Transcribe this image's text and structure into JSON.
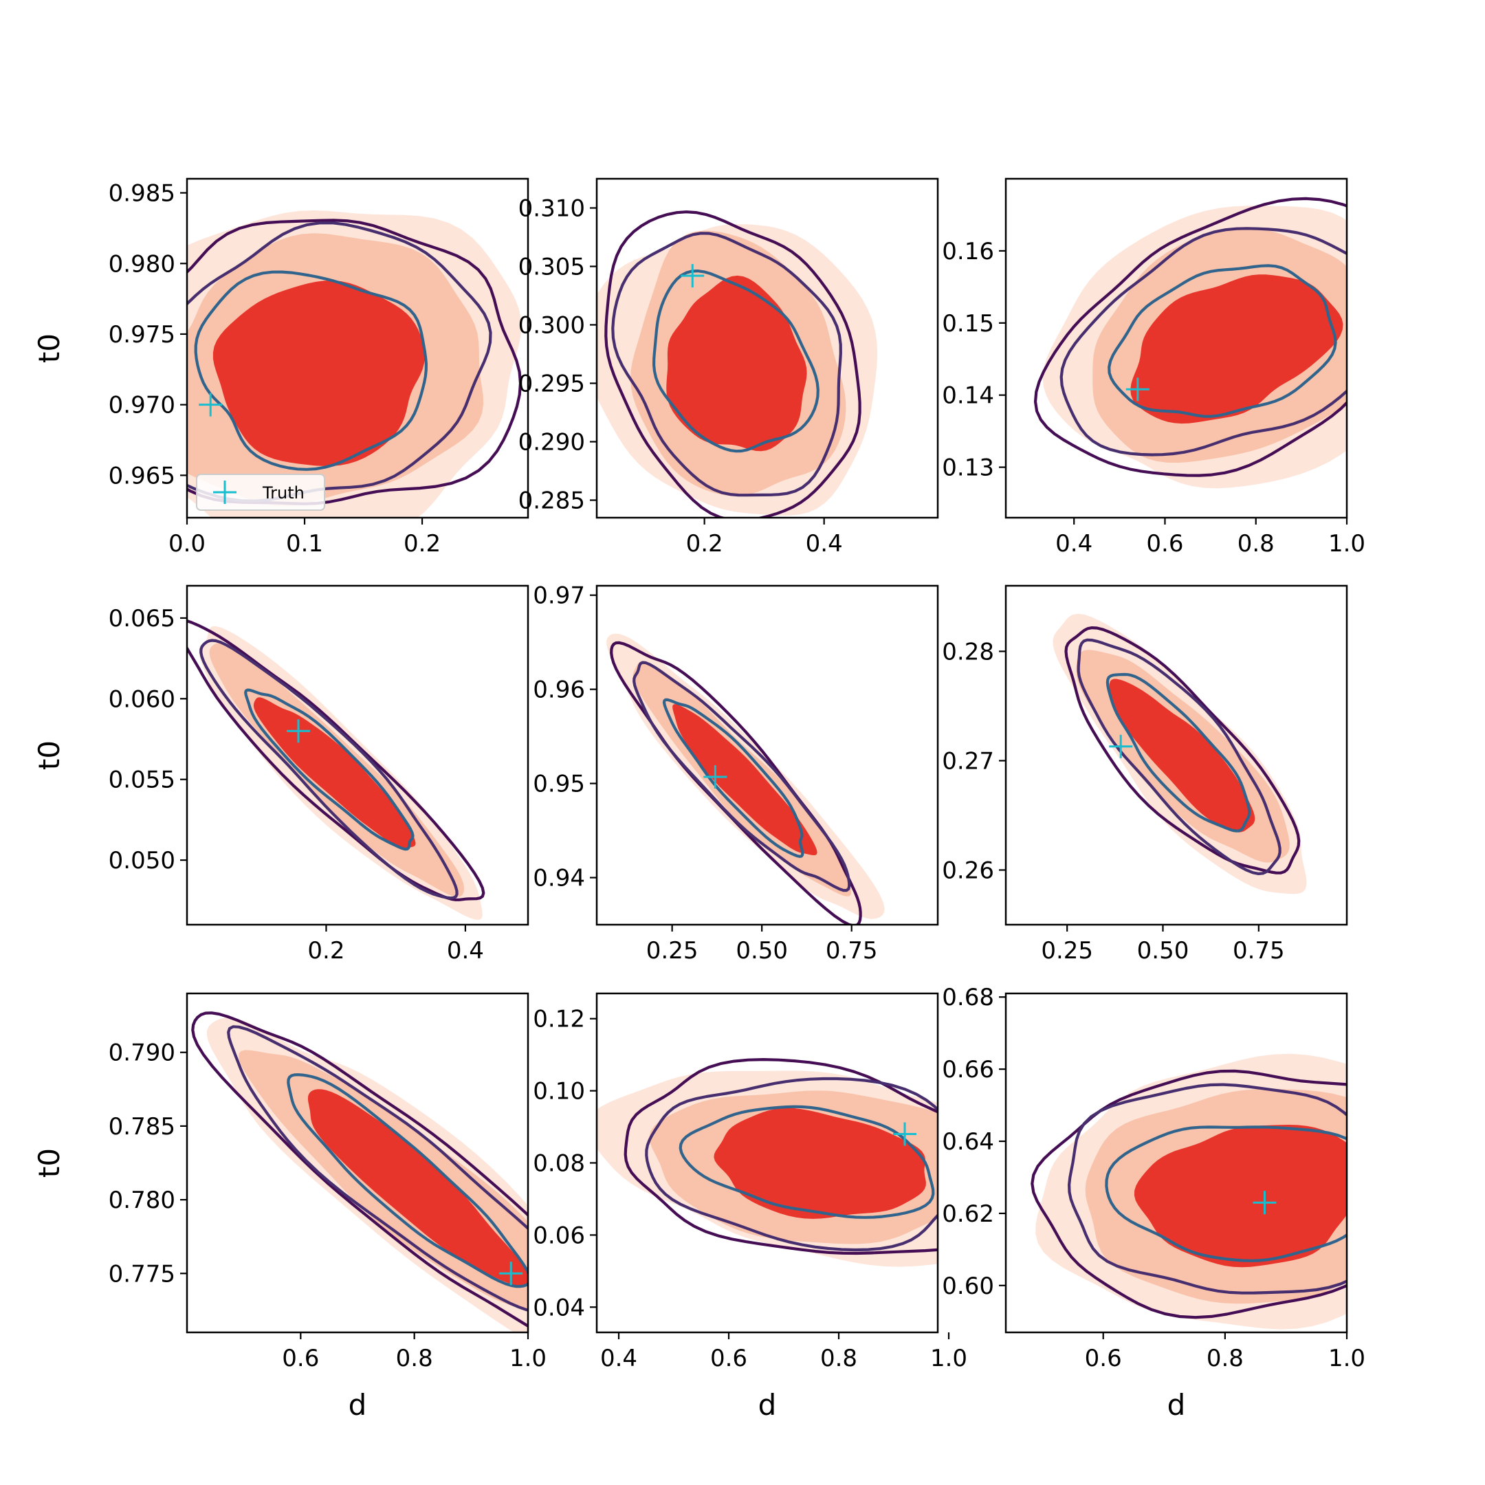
{
  "figure": {
    "legend": {
      "label": "Truth",
      "placement": "lower-left of top-left panel"
    },
    "x_label": "d",
    "y_label": "t0"
  },
  "colors": {
    "fill_light": "#fde5da",
    "fill_mid": "#f9c3ab",
    "fill_dark": "#e8352b",
    "line_outer": "#450d54",
    "line_mid": "#472e6e",
    "line_inner": "#31648c",
    "truth": "#17becf"
  },
  "chart_data": [
    {
      "type": "contour",
      "xlabel": "",
      "ylabel": "t0",
      "xlim": [
        0.0,
        0.29
      ],
      "ylim": [
        0.962,
        0.986
      ],
      "xticks": [
        0.0,
        0.1,
        0.2
      ],
      "xticklabels": [
        "0.0",
        "0.1",
        "0.2"
      ],
      "yticks": [
        0.965,
        0.97,
        0.975,
        0.98,
        0.985
      ],
      "yticklabels": [
        "0.965",
        "0.970",
        "0.975",
        "0.980",
        "0.985"
      ],
      "truth": [
        0.02,
        0.97
      ],
      "center": [
        0.11,
        0.9725
      ],
      "spread": [
        0.07,
        0.0045
      ],
      "corr": 0.05,
      "legend": true
    },
    {
      "type": "contour",
      "xlabel": "",
      "ylabel": "",
      "xlim": [
        0.02,
        0.59
      ],
      "ylim": [
        0.2835,
        0.3125
      ],
      "xticks": [
        0.2,
        0.4
      ],
      "xticklabels": [
        "0.2",
        "0.4"
      ],
      "yticks": [
        0.285,
        0.29,
        0.295,
        0.3,
        0.305,
        0.31
      ],
      "yticklabels": [
        "0.285",
        "0.290",
        "0.295",
        "0.300",
        "0.305",
        "0.310"
      ],
      "truth": [
        0.18,
        0.3042
      ],
      "center": [
        0.25,
        0.2965
      ],
      "spread": [
        0.09,
        0.0052
      ],
      "corr": -0.15
    },
    {
      "type": "contour",
      "xlabel": "",
      "ylabel": "",
      "xlim": [
        0.25,
        1.0
      ],
      "ylim": [
        0.123,
        0.17
      ],
      "xticks": [
        0.4,
        0.6,
        0.8,
        1.0
      ],
      "xticklabels": [
        "0.4",
        "0.6",
        "0.8",
        "1.0"
      ],
      "yticks": [
        0.13,
        0.14,
        0.15,
        0.16
      ],
      "yticklabels": [
        "0.13",
        "0.14",
        "0.15",
        "0.16"
      ],
      "truth": [
        0.54,
        0.1408
      ],
      "center": [
        0.74,
        0.147
      ],
      "spread": [
        0.16,
        0.0075
      ],
      "corr": 0.25
    },
    {
      "type": "contour",
      "xlabel": "",
      "ylabel": "t0",
      "xlim": [
        0.0,
        0.49
      ],
      "ylim": [
        0.046,
        0.067
      ],
      "xticks": [
        0.2,
        0.4
      ],
      "xticklabels": [
        "0.2",
        "0.4"
      ],
      "yticks": [
        0.05,
        0.055,
        0.06,
        0.065
      ],
      "yticklabels": [
        "0.050",
        "0.055",
        "0.060",
        "0.065"
      ],
      "truth": [
        0.16,
        0.058
      ],
      "center": [
        0.21,
        0.0556
      ],
      "spread": [
        0.085,
        0.0036
      ],
      "corr": -0.93
    },
    {
      "type": "contour",
      "xlabel": "",
      "ylabel": "",
      "xlim": [
        0.04,
        0.99
      ],
      "ylim": [
        0.935,
        0.971
      ],
      "xticks": [
        0.25,
        0.5,
        0.75
      ],
      "xticklabels": [
        "0.25",
        "0.50",
        "0.75"
      ],
      "yticks": [
        0.94,
        0.95,
        0.96,
        0.97
      ],
      "yticklabels": [
        "0.94",
        "0.95",
        "0.96",
        "0.97"
      ],
      "truth": [
        0.37,
        0.9507
      ],
      "center": [
        0.44,
        0.9505
      ],
      "spread": [
        0.14,
        0.0058
      ],
      "corr": -0.92
    },
    {
      "type": "contour",
      "xlabel": "",
      "ylabel": "",
      "xlim": [
        0.09,
        0.98
      ],
      "ylim": [
        0.255,
        0.286
      ],
      "xticks": [
        0.25,
        0.5,
        0.75
      ],
      "xticklabels": [
        "0.25",
        "0.50",
        "0.75"
      ],
      "yticks": [
        0.26,
        0.27,
        0.28
      ],
      "yticklabels": [
        "0.26",
        "0.27",
        "0.28"
      ],
      "truth": [
        0.39,
        0.2713
      ],
      "center": [
        0.55,
        0.2705
      ],
      "spread": [
        0.13,
        0.0048
      ],
      "corr": -0.82
    },
    {
      "type": "contour",
      "xlabel": "d",
      "ylabel": "t0",
      "xlim": [
        0.4,
        1.0
      ],
      "ylim": [
        0.771,
        0.794
      ],
      "xticks": [
        0.6,
        0.8,
        1.0
      ],
      "xticklabels": [
        "0.6",
        "0.8",
        "1.0"
      ],
      "yticks": [
        0.775,
        0.78,
        0.785,
        0.79
      ],
      "yticklabels": [
        "0.775",
        "0.780",
        "0.785",
        "0.790"
      ],
      "truth": [
        0.97,
        0.775
      ],
      "center": [
        0.79,
        0.7812
      ],
      "spread": [
        0.14,
        0.0046
      ],
      "corr": -0.9
    },
    {
      "type": "contour",
      "xlabel": "d",
      "ylabel": "",
      "xlim": [
        0.36,
        0.98
      ],
      "ylim": [
        0.033,
        0.127
      ],
      "xticks": [
        0.4,
        0.6,
        0.8,
        1.0
      ],
      "xticklabels": [
        "0.4",
        "0.6",
        "0.8",
        "1.0"
      ],
      "yticks": [
        0.04,
        0.06,
        0.08,
        0.1,
        0.12
      ],
      "yticklabels": [
        "0.04",
        "0.06",
        "0.08",
        "0.10",
        "0.12"
      ],
      "truth": [
        0.92,
        0.088
      ],
      "center": [
        0.76,
        0.08
      ],
      "spread": [
        0.15,
        0.0105
      ],
      "corr": -0.2
    },
    {
      "type": "contour",
      "xlabel": "d",
      "ylabel": "",
      "xlim": [
        0.44,
        1.0
      ],
      "ylim": [
        0.587,
        0.681
      ],
      "xticks": [
        0.6,
        0.8,
        1.0
      ],
      "xticklabels": [
        "0.6",
        "0.8",
        "1.0"
      ],
      "yticks": [
        0.6,
        0.62,
        0.64,
        0.66,
        0.68
      ],
      "yticklabels": [
        "0.60",
        "0.62",
        "0.64",
        "0.66",
        "0.68"
      ],
      "truth": [
        0.865,
        0.623
      ],
      "center": [
        0.84,
        0.626
      ],
      "spread": [
        0.14,
        0.014
      ],
      "corr": 0.0
    }
  ]
}
